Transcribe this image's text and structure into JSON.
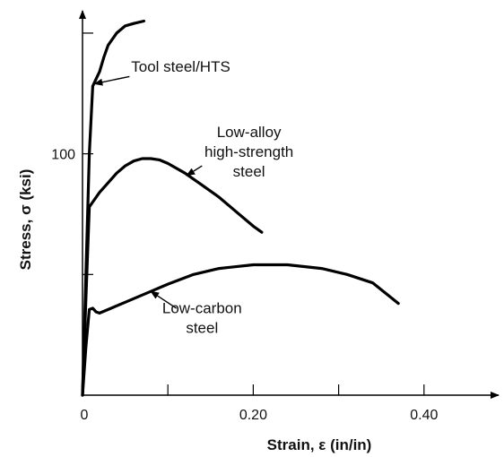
{
  "chart_data": {
    "type": "line",
    "xlabel": "Strain, ε (in/in)",
    "ylabel": "Stress, σ (ksi)",
    "xlim": [
      0,
      0.5
    ],
    "ylim": [
      0,
      160
    ],
    "x_ticks": [
      0,
      0.1,
      0.2,
      0.3,
      0.4
    ],
    "x_tick_labels": [
      "0",
      "",
      "0.20",
      "",
      "0.40"
    ],
    "y_ticks": [
      50,
      100,
      150
    ],
    "y_tick_labels": [
      "",
      "100",
      ""
    ],
    "grid": false,
    "series": [
      {
        "key": "tool",
        "points": [
          [
            0,
            0
          ],
          [
            0.004,
            50
          ],
          [
            0.008,
            100
          ],
          [
            0.012,
            128
          ],
          [
            0.016,
            131
          ],
          [
            0.02,
            134
          ],
          [
            0.025,
            140
          ],
          [
            0.03,
            145
          ],
          [
            0.04,
            150
          ],
          [
            0.05,
            153
          ],
          [
            0.06,
            154
          ],
          [
            0.072,
            155
          ]
        ]
      },
      {
        "key": "alloy",
        "points": [
          [
            0,
            0
          ],
          [
            0.004,
            40
          ],
          [
            0.008,
            78
          ],
          [
            0.012,
            80
          ],
          [
            0.02,
            84
          ],
          [
            0.03,
            88
          ],
          [
            0.04,
            92
          ],
          [
            0.05,
            95
          ],
          [
            0.06,
            97
          ],
          [
            0.07,
            98
          ],
          [
            0.08,
            98
          ],
          [
            0.09,
            97.5
          ],
          [
            0.1,
            96
          ],
          [
            0.12,
            92
          ],
          [
            0.14,
            87
          ],
          [
            0.16,
            82
          ],
          [
            0.18,
            76
          ],
          [
            0.2,
            70
          ],
          [
            0.21,
            67.5
          ]
        ]
      },
      {
        "key": "carbon",
        "points": [
          [
            0,
            0
          ],
          [
            0.004,
            20
          ],
          [
            0.008,
            35.5
          ],
          [
            0.012,
            36
          ],
          [
            0.016,
            34.5
          ],
          [
            0.02,
            34
          ],
          [
            0.03,
            35.5
          ],
          [
            0.05,
            38.5
          ],
          [
            0.08,
            43
          ],
          [
            0.1,
            46
          ],
          [
            0.13,
            50
          ],
          [
            0.16,
            52.5
          ],
          [
            0.2,
            54
          ],
          [
            0.24,
            54
          ],
          [
            0.28,
            52.5
          ],
          [
            0.31,
            50
          ],
          [
            0.34,
            46.5
          ],
          [
            0.37,
            38
          ]
        ]
      }
    ],
    "annotations": [
      {
        "key": "tool",
        "lines": [
          "Tool steel/HTS"
        ],
        "text_x": 0.057,
        "text_y": 134,
        "arrow_from": [
          0.055,
          132
        ],
        "arrow_to": [
          0.014,
          129
        ]
      },
      {
        "key": "alloy",
        "lines": [
          "Low-alloy",
          "high-strength",
          "steel"
        ],
        "text_x": 0.195,
        "text_y": 107,
        "arrow_from": [
          0.14,
          95
        ],
        "arrow_to": [
          0.122,
          91
        ]
      },
      {
        "key": "carbon",
        "lines": [
          "Low-carbon",
          "steel"
        ],
        "text_x": 0.14,
        "text_y": 34,
        "arrow_from": [
          0.11,
          36
        ],
        "arrow_to": [
          0.08,
          43
        ]
      }
    ]
  }
}
